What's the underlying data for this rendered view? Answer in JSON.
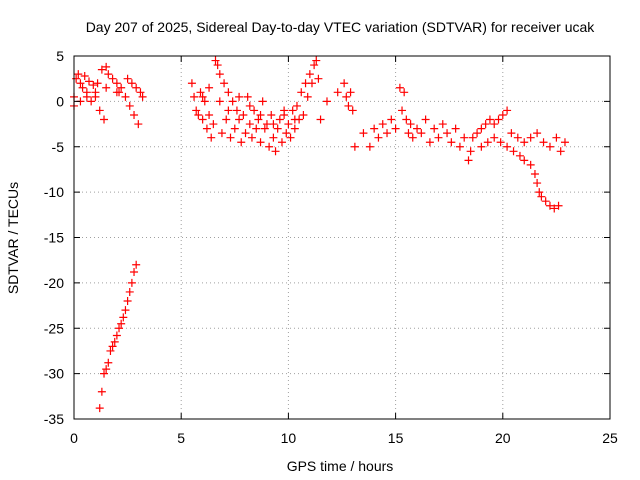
{
  "chart_data": {
    "type": "scatter",
    "title": "Day 207 of 2025, Sidereal Day-to-day VTEC variation (SDTVAR) for receiver ucak",
    "xlabel": "GPS time / hours",
    "ylabel": "SDTVAR / TECUs",
    "xlim": [
      0,
      25
    ],
    "ylim": [
      -35,
      5
    ],
    "xticks": [
      0,
      5,
      10,
      15,
      20,
      25
    ],
    "yticks": [
      5,
      0,
      -5,
      -10,
      -15,
      -20,
      -25,
      -30,
      -35
    ],
    "grid": true,
    "marker": "plus",
    "color": "#ff0000",
    "series": [
      {
        "name": "SDTVAR",
        "points": [
          [
            0.0,
            0.5
          ],
          [
            0.1,
            2.5
          ],
          [
            0.2,
            3.0
          ],
          [
            0.3,
            2.0
          ],
          [
            0.4,
            1.5
          ],
          [
            0.5,
            2.8
          ],
          [
            0.6,
            1.0
          ],
          [
            0.7,
            2.2
          ],
          [
            0.8,
            0.0
          ],
          [
            0.9,
            1.8
          ],
          [
            1.0,
            0.5
          ],
          [
            1.1,
            2.0
          ],
          [
            1.2,
            -1.0
          ],
          [
            1.3,
            3.5
          ],
          [
            1.4,
            -2.0
          ],
          [
            1.5,
            3.8
          ],
          [
            1.6,
            3.0
          ],
          [
            1.8,
            2.5
          ],
          [
            2.0,
            2.0
          ],
          [
            2.1,
            1.0
          ],
          [
            2.2,
            1.5
          ],
          [
            2.4,
            0.5
          ],
          [
            2.5,
            2.5
          ],
          [
            2.6,
            -0.5
          ],
          [
            2.7,
            2.0
          ],
          [
            2.8,
            -1.5
          ],
          [
            2.9,
            1.5
          ],
          [
            3.0,
            -2.5
          ],
          [
            3.1,
            1.0
          ],
          [
            3.2,
            0.5
          ],
          [
            0.0,
            -0.5
          ],
          [
            0.3,
            0.0
          ],
          [
            0.6,
            0.5
          ],
          [
            1.0,
            1.0
          ],
          [
            1.5,
            1.5
          ],
          [
            2.0,
            1.0
          ],
          [
            1.2,
            -33.8
          ],
          [
            1.3,
            -32.0
          ],
          [
            1.4,
            -30.0
          ],
          [
            1.5,
            -29.5
          ],
          [
            1.6,
            -28.8
          ],
          [
            1.7,
            -27.5
          ],
          [
            1.8,
            -27.0
          ],
          [
            1.9,
            -26.5
          ],
          [
            2.0,
            -25.8
          ],
          [
            2.1,
            -25.0
          ],
          [
            2.2,
            -24.5
          ],
          [
            2.3,
            -23.8
          ],
          [
            2.4,
            -23.0
          ],
          [
            2.5,
            -22.0
          ],
          [
            2.6,
            -21.0
          ],
          [
            2.7,
            -20.0
          ],
          [
            2.8,
            -18.8
          ],
          [
            2.9,
            -18.0
          ],
          [
            5.5,
            2.0
          ],
          [
            5.6,
            0.5
          ],
          [
            5.7,
            -1.0
          ],
          [
            5.8,
            -1.5
          ],
          [
            5.9,
            1.0
          ],
          [
            6.0,
            -2.0
          ],
          [
            6.1,
            0.0
          ],
          [
            6.2,
            -3.0
          ],
          [
            6.3,
            -1.5
          ],
          [
            6.4,
            -4.0
          ],
          [
            6.5,
            -2.5
          ],
          [
            6.6,
            4.5
          ],
          [
            6.7,
            4.0
          ],
          [
            6.8,
            3.0
          ],
          [
            6.9,
            -3.5
          ],
          [
            7.0,
            2.0
          ],
          [
            7.1,
            -2.0
          ],
          [
            7.2,
            1.0
          ],
          [
            7.3,
            -4.0
          ],
          [
            7.4,
            0.0
          ],
          [
            7.5,
            -3.0
          ],
          [
            7.6,
            -1.0
          ],
          [
            7.7,
            -2.0
          ],
          [
            7.8,
            -4.5
          ],
          [
            7.9,
            -1.5
          ],
          [
            8.0,
            -3.5
          ],
          [
            8.1,
            0.5
          ],
          [
            8.2,
            -2.5
          ],
          [
            8.3,
            -4.0
          ],
          [
            8.4,
            -1.0
          ],
          [
            8.5,
            -3.0
          ],
          [
            8.6,
            -2.0
          ],
          [
            8.7,
            -4.5
          ],
          [
            8.8,
            0.0
          ],
          [
            8.9,
            -3.0
          ],
          [
            9.0,
            -2.5
          ],
          [
            9.1,
            -5.0
          ],
          [
            9.2,
            -1.5
          ],
          [
            9.3,
            -4.0
          ],
          [
            9.4,
            -5.5
          ],
          [
            9.5,
            -3.0
          ],
          [
            9.6,
            -2.0
          ],
          [
            9.7,
            -4.5
          ],
          [
            9.8,
            -1.0
          ],
          [
            9.9,
            -3.5
          ],
          [
            10.0,
            -2.5
          ],
          [
            10.1,
            -4.0
          ],
          [
            10.2,
            -1.0
          ],
          [
            10.3,
            -3.0
          ],
          [
            10.4,
            -0.5
          ],
          [
            10.5,
            -2.0
          ],
          [
            10.6,
            1.0
          ],
          [
            10.7,
            -1.5
          ],
          [
            10.8,
            2.0
          ],
          [
            10.9,
            0.5
          ],
          [
            11.0,
            3.0
          ],
          [
            11.1,
            2.0
          ],
          [
            11.2,
            4.0
          ],
          [
            11.3,
            4.5
          ],
          [
            11.4,
            2.5
          ],
          [
            11.5,
            -2.0
          ],
          [
            6.0,
            0.5
          ],
          [
            6.3,
            1.5
          ],
          [
            6.8,
            0.0
          ],
          [
            7.2,
            -1.0
          ],
          [
            7.7,
            0.5
          ],
          [
            8.2,
            -0.5
          ],
          [
            8.7,
            -1.5
          ],
          [
            9.3,
            -2.5
          ],
          [
            9.8,
            -1.5
          ],
          [
            10.3,
            -2.0
          ],
          [
            11.8,
            0.0
          ],
          [
            12.3,
            1.0
          ],
          [
            12.6,
            2.0
          ],
          [
            12.7,
            0.5
          ],
          [
            12.8,
            -0.5
          ],
          [
            12.9,
            1.0
          ],
          [
            13.0,
            -1.0
          ],
          [
            13.1,
            -5.0
          ],
          [
            13.5,
            -3.5
          ],
          [
            13.8,
            -5.0
          ],
          [
            14.0,
            -3.0
          ],
          [
            14.2,
            -4.0
          ],
          [
            14.4,
            -2.5
          ],
          [
            14.6,
            -3.5
          ],
          [
            14.8,
            -2.0
          ],
          [
            15.0,
            -3.0
          ],
          [
            15.2,
            1.5
          ],
          [
            15.3,
            -1.0
          ],
          [
            15.4,
            1.0
          ],
          [
            15.5,
            -2.0
          ],
          [
            15.6,
            -3.5
          ],
          [
            15.7,
            -2.5
          ],
          [
            15.8,
            -4.0
          ],
          [
            16.0,
            -3.0
          ],
          [
            16.2,
            -3.5
          ],
          [
            16.4,
            -2.0
          ],
          [
            16.6,
            -4.5
          ],
          [
            16.8,
            -3.0
          ],
          [
            17.0,
            -4.0
          ],
          [
            17.2,
            -2.5
          ],
          [
            17.4,
            -3.5
          ],
          [
            17.6,
            -4.5
          ],
          [
            17.8,
            -3.0
          ],
          [
            18.0,
            -5.0
          ],
          [
            18.2,
            -4.0
          ],
          [
            18.4,
            -6.5
          ],
          [
            18.5,
            -5.5
          ],
          [
            18.6,
            -4.0
          ],
          [
            18.8,
            -3.5
          ],
          [
            19.0,
            -3.0
          ],
          [
            19.2,
            -2.5
          ],
          [
            19.4,
            -2.0
          ],
          [
            19.6,
            -2.5
          ],
          [
            19.8,
            -2.0
          ],
          [
            20.0,
            -1.5
          ],
          [
            20.2,
            -1.0
          ],
          [
            19.0,
            -5.0
          ],
          [
            19.3,
            -4.5
          ],
          [
            19.6,
            -4.0
          ],
          [
            19.9,
            -4.5
          ],
          [
            20.2,
            -5.0
          ],
          [
            20.5,
            -5.5
          ],
          [
            20.8,
            -6.0
          ],
          [
            21.0,
            -6.5
          ],
          [
            20.4,
            -3.5
          ],
          [
            20.7,
            -4.0
          ],
          [
            21.0,
            -4.5
          ],
          [
            21.3,
            -4.0
          ],
          [
            21.6,
            -3.5
          ],
          [
            21.9,
            -4.5
          ],
          [
            22.2,
            -5.0
          ],
          [
            22.5,
            -4.0
          ],
          [
            22.7,
            -5.5
          ],
          [
            22.9,
            -4.5
          ],
          [
            21.3,
            -7.0
          ],
          [
            21.5,
            -8.0
          ],
          [
            21.6,
            -9.0
          ],
          [
            21.7,
            -10.0
          ],
          [
            21.8,
            -10.5
          ],
          [
            22.0,
            -11.0
          ],
          [
            22.2,
            -11.5
          ],
          [
            22.4,
            -11.8
          ],
          [
            22.6,
            -11.5
          ]
        ]
      }
    ]
  }
}
